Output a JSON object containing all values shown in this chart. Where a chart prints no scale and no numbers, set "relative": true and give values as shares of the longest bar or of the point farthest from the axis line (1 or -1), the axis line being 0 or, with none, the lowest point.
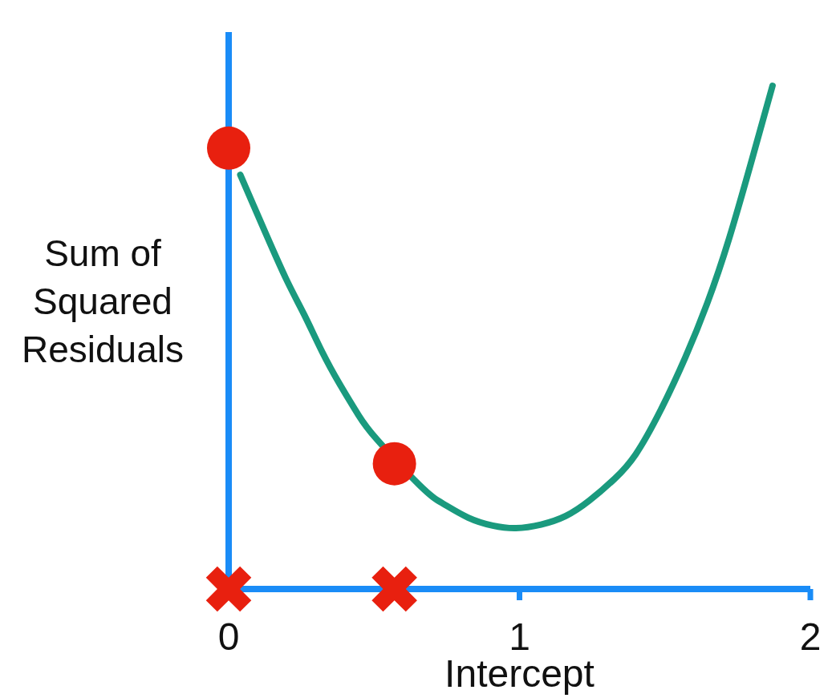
{
  "chart_data": {
    "type": "line",
    "xlabel": "Intercept",
    "ylabel": "Sum of Squared Residuals",
    "relative": true,
    "xlim": [
      0,
      2
    ],
    "xticks": [
      0,
      1,
      2
    ],
    "series": [
      {
        "color": "#1a9a7e",
        "x": [
          0.04,
          0.112,
          0.196,
          0.259,
          0.32,
          0.383,
          0.447,
          0.51,
          0.657,
          0.739,
          0.823,
          0.908,
          0.988,
          1.074,
          1.159,
          1.241,
          1.327,
          1.4,
          1.485,
          1.57,
          1.645,
          1.72,
          1.8,
          1.87
        ],
        "values": [
          0.823,
          0.727,
          0.618,
          0.546,
          0.473,
          0.406,
          0.345,
          0.297,
          0.206,
          0.169,
          0.142,
          0.126,
          0.121,
          0.128,
          0.145,
          0.176,
          0.219,
          0.268,
          0.355,
          0.46,
          0.567,
          0.695,
          0.855,
          1
        ]
      },
      {
        "type": "scatter",
        "color": "#e8200f",
        "marker": "circle",
        "x": [
          0,
          0.57
        ],
        "values": [
          0.876,
          0.249
        ]
      },
      {
        "type": "scatter",
        "color": "#e8200f",
        "marker": "cross",
        "x": [
          0,
          0.57
        ],
        "values": [
          0,
          0
        ]
      }
    ]
  }
}
